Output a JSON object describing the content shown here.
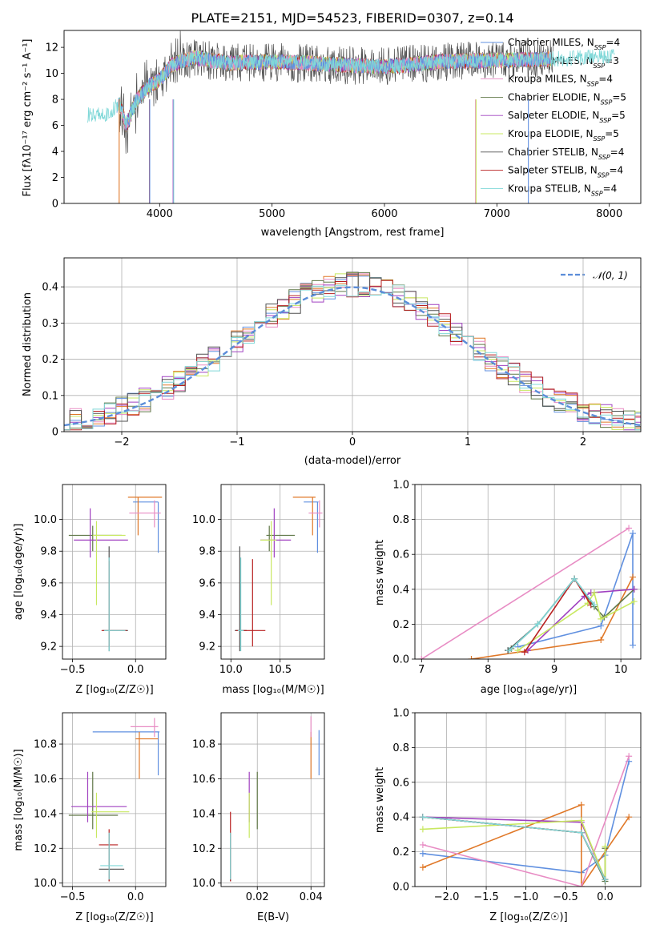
{
  "colors": [
    "#6090e0",
    "#e07828",
    "#e88cc4",
    "#607848",
    "#a040c0",
    "#c8e860",
    "#505050",
    "#b82020",
    "#80d8d8"
  ],
  "chart_data": [
    {
      "type": "line",
      "title": "PLATE=2151, MJD=54523, FIBERID=0307, z=0.14",
      "xlabel": "wavelength [Angstrom, rest frame]",
      "ylabel_html": "Flux [fλ10⁻¹⁷ erg cm⁻² s⁻¹ A⁻¹]",
      "xlim": [
        3150,
        8280
      ],
      "ylim": [
        0,
        13.3
      ],
      "xticks": [
        4000,
        5000,
        6000,
        7000,
        8000
      ],
      "yticks": [
        0,
        2,
        4,
        6,
        8,
        10,
        12
      ],
      "legend": "top-right",
      "series": [
        {
          "name": "Chabrier MILES, Nₛₛₚ=4",
          "name_main": "Chabrier MILES, N",
          "name_sub": "SSP",
          "name_tail": "=4"
        },
        {
          "name": "Salpeter MILES, Nₛₛₚ=3",
          "name_main": "Salpeter MILES, N",
          "name_sub": "SSP",
          "name_tail": "=3"
        },
        {
          "name": "Kroupa MILES, Nₛₛₚ=4",
          "name_main": "Kroupa MILES, N",
          "name_sub": "SSP",
          "name_tail": "=4"
        },
        {
          "name": "Chabrier ELODIE, Nₛₛₚ=5",
          "name_main": "Chabrier ELODIE, N",
          "name_sub": "SSP",
          "name_tail": "=5"
        },
        {
          "name": "Salpeter ELODIE, Nₛₛₚ=5",
          "name_main": "Salpeter ELODIE, N",
          "name_sub": "SSP",
          "name_tail": "=5"
        },
        {
          "name": "Kroupa ELODIE, Nₛₛₚ=5",
          "name_main": "Kroupa ELODIE, N",
          "name_sub": "SSP",
          "name_tail": "=5"
        },
        {
          "name": "Chabrier STELIB, Nₛₛₚ=4",
          "name_main": "Chabrier STELIB, N",
          "name_sub": "SSP",
          "name_tail": "=4"
        },
        {
          "name": "Salpeter STELIB, Nₛₛₚ=4",
          "name_main": "Salpeter STELIB, N",
          "name_sub": "SSP",
          "name_tail": "=4"
        },
        {
          "name": "Kroupa STELIB, Nₛₛₚ=4",
          "name_main": "Kroupa STELIB, N",
          "name_sub": "SSP",
          "name_tail": "=4"
        }
      ],
      "spectrum_envelope": {
        "x": [
          3360,
          3560,
          3640,
          3700,
          3800,
          3900,
          4000,
          4100,
          4300,
          4600,
          5000,
          5500,
          6000,
          6500,
          7000,
          7500,
          8050
        ],
        "y": [
          6.8,
          6.9,
          7.8,
          6.0,
          8.0,
          9.0,
          9.5,
          10.6,
          11.2,
          10.8,
          10.9,
          10.7,
          10.5,
          10.9,
          11.0,
          11.1,
          11.4
        ]
      }
    },
    {
      "type": "line",
      "xlabel": "(data-model)/error",
      "ylabel": "Normed distribution",
      "xlim": [
        -2.5,
        2.5
      ],
      "ylim": [
        0,
        0.48
      ],
      "xticks": [
        -2,
        -1,
        0,
        1,
        2
      ],
      "yticks": [
        0.0,
        0.1,
        0.2,
        0.3,
        0.4
      ],
      "grid": true,
      "legend": "top-right",
      "legend_label": "𝒩(0, 1)",
      "bin_width": 0.1
    },
    {
      "type": "scatter",
      "xlabel": "Z [log₁₀(Z/Z☉)]",
      "ylabel": "age  [log₁₀(age/yr)]",
      "xlim": [
        -0.58,
        0.24
      ],
      "ylim": [
        9.12,
        10.22
      ],
      "xticks": [
        -0.5,
        0.0
      ],
      "yticks": [
        9.2,
        9.4,
        9.6,
        9.8,
        10.0
      ],
      "grid": true,
      "points": [
        {
          "x": 0.18,
          "y": 10.11,
          "x0": -0.02,
          "x1": 0.18,
          "y0": 9.79,
          "y1": 10.11,
          "c": 0
        },
        {
          "x": 0.02,
          "y": 10.14,
          "x0": -0.06,
          "x1": 0.21,
          "y0": 9.9,
          "y1": 10.14,
          "c": 1
        },
        {
          "x": 0.15,
          "y": 10.04,
          "x0": -0.05,
          "x1": 0.2,
          "y0": 9.95,
          "y1": 10.12,
          "c": 2
        },
        {
          "x": -0.34,
          "y": 9.9,
          "x0": -0.53,
          "x1": -0.11,
          "y0": 9.8,
          "y1": 9.96,
          "c": 3
        },
        {
          "x": -0.36,
          "y": 9.87,
          "x0": -0.49,
          "x1": -0.06,
          "y0": 9.76,
          "y1": 10.07,
          "c": 4
        },
        {
          "x": -0.31,
          "y": 9.9,
          "x0": -0.34,
          "x1": -0.08,
          "y0": 9.46,
          "y1": 9.99,
          "c": 5
        },
        {
          "x": -0.21,
          "y": 9.3,
          "x0": -0.26,
          "x1": -0.06,
          "y0": 9.17,
          "y1": 9.83,
          "c": 6
        },
        {
          "x": -0.21,
          "y": 9.3,
          "x0": -0.27,
          "x1": -0.07,
          "y0": 9.2,
          "y1": 9.74,
          "c": 7
        },
        {
          "x": -0.21,
          "y": 9.3,
          "x0": -0.25,
          "x1": -0.08,
          "y0": 9.17,
          "y1": 9.76,
          "c": 8
        }
      ]
    },
    {
      "type": "scatter",
      "xlabel": "mass [log₁₀(M/M☉)]",
      "xlim": [
        9.9,
        10.95
      ],
      "ylim": [
        9.12,
        10.22
      ],
      "xticks": [
        10.0,
        10.5
      ],
      "yticks": [
        9.2,
        9.4,
        9.6,
        9.8,
        10.0
      ],
      "grid": true,
      "points": [
        {
          "x": 10.88,
          "y": 10.11,
          "x0": 10.74,
          "x1": 10.89,
          "y0": 9.79,
          "y1": 10.11,
          "c": 0
        },
        {
          "x": 10.83,
          "y": 10.14,
          "x0": 10.63,
          "x1": 10.86,
          "y0": 9.9,
          "y1": 10.14,
          "c": 1
        },
        {
          "x": 10.9,
          "y": 10.04,
          "x0": 10.79,
          "x1": 10.93,
          "y0": 9.95,
          "y1": 10.12,
          "c": 2
        },
        {
          "x": 10.39,
          "y": 9.9,
          "x0": 10.36,
          "x1": 10.65,
          "y0": 9.8,
          "y1": 9.96,
          "c": 3
        },
        {
          "x": 10.44,
          "y": 9.87,
          "x0": 10.3,
          "x1": 10.61,
          "y0": 9.76,
          "y1": 10.07,
          "c": 4
        },
        {
          "x": 10.41,
          "y": 9.87,
          "x0": 10.3,
          "x1": 10.46,
          "y0": 9.46,
          "y1": 9.99,
          "c": 5
        },
        {
          "x": 10.09,
          "y": 9.3,
          "x0": 10.04,
          "x1": 10.16,
          "y0": 9.17,
          "y1": 9.83,
          "c": 6
        },
        {
          "x": 10.22,
          "y": 9.3,
          "x0": 10.05,
          "x1": 10.35,
          "y0": 9.2,
          "y1": 9.75,
          "c": 7
        },
        {
          "x": 10.1,
          "y": 9.3,
          "x0": 10.07,
          "x1": 10.13,
          "y0": 9.17,
          "y1": 9.76,
          "c": 8
        }
      ]
    },
    {
      "type": "line",
      "xlabel": "age  [log₁₀(age/yr)]",
      "ylabel": "mass weight",
      "xlim": [
        6.9,
        10.3
      ],
      "ylim": [
        0,
        1.0
      ],
      "xticks": [
        7,
        8,
        9,
        10
      ],
      "yticks": [
        0.0,
        0.2,
        0.4,
        0.6,
        0.8,
        1.0
      ],
      "grid": true,
      "series": [
        {
          "c": 0,
          "x": [
            8.45,
            9.7,
            10.18,
            10.18
          ],
          "y": [
            0.07,
            0.19,
            0.72,
            0.08
          ]
        },
        {
          "c": 1,
          "x": [
            7.75,
            9.7,
            10.18
          ],
          "y": [
            0.0,
            0.11,
            0.47
          ]
        },
        {
          "c": 2,
          "x": [
            7.0,
            10.12
          ],
          "y": [
            0.0,
            0.75
          ]
        },
        {
          "c": 3,
          "x": [
            8.35,
            8.75,
            9.3,
            9.6,
            9.75,
            10.2
          ],
          "y": [
            0.06,
            0.2,
            0.46,
            0.3,
            0.24,
            0.4
          ]
        },
        {
          "c": 4,
          "x": [
            8.6,
            9.45,
            9.55,
            10.2
          ],
          "y": [
            0.05,
            0.36,
            0.38,
            0.4
          ]
        },
        {
          "c": 5,
          "x": [
            8.45,
            9.5,
            9.6,
            9.7,
            10.2
          ],
          "y": [
            0.05,
            0.32,
            0.38,
            0.23,
            0.33
          ]
        },
        {
          "c": 6,
          "x": [
            8.3,
            8.75,
            9.3,
            9.6
          ],
          "y": [
            0.05,
            0.2,
            0.46,
            0.31
          ]
        },
        {
          "c": 7,
          "x": [
            8.55,
            9.3,
            9.55
          ],
          "y": [
            0.04,
            0.46,
            0.31
          ]
        },
        {
          "c": 8,
          "x": [
            8.32,
            8.75,
            9.3,
            9.6
          ],
          "y": [
            0.05,
            0.2,
            0.46,
            0.31
          ]
        }
      ]
    },
    {
      "type": "scatter",
      "xlabel": "Z [log₁₀(Z/Z☉)]",
      "ylabel": "mass [log₁₀(M/M☉)]",
      "xlim": [
        -0.58,
        0.24
      ],
      "ylim": [
        9.98,
        10.98
      ],
      "xticks": [
        -0.5,
        0.0
      ],
      "yticks": [
        10.0,
        10.2,
        10.4,
        10.6,
        10.8
      ],
      "grid": true,
      "points": [
        {
          "x": 0.18,
          "y": 10.87,
          "x0": -0.34,
          "x1": 0.19,
          "y0": 10.62,
          "y1": 10.87,
          "c": 0
        },
        {
          "x": 0.03,
          "y": 10.83,
          "x0": 0.0,
          "x1": 0.18,
          "y0": 10.6,
          "y1": 10.87,
          "c": 1
        },
        {
          "x": 0.15,
          "y": 10.9,
          "x0": -0.04,
          "x1": 0.18,
          "y0": 10.84,
          "y1": 10.95,
          "c": 2
        },
        {
          "x": -0.34,
          "y": 10.39,
          "x0": -0.53,
          "x1": -0.14,
          "y0": 10.31,
          "y1": 10.64,
          "c": 3
        },
        {
          "x": -0.38,
          "y": 10.44,
          "x0": -0.51,
          "x1": -0.07,
          "y0": 10.35,
          "y1": 10.64,
          "c": 4
        },
        {
          "x": -0.31,
          "y": 10.41,
          "x0": -0.35,
          "x1": -0.05,
          "y0": 10.26,
          "y1": 10.52,
          "c": 5
        },
        {
          "x": -0.21,
          "y": 10.08,
          "x0": -0.29,
          "x1": -0.09,
          "y0": 10.01,
          "y1": 10.29,
          "c": 6
        },
        {
          "x": -0.21,
          "y": 10.22,
          "x0": -0.29,
          "x1": -0.14,
          "y0": 10.01,
          "y1": 10.31,
          "c": 7
        },
        {
          "x": -0.21,
          "y": 10.1,
          "x0": -0.28,
          "x1": -0.1,
          "y0": 10.02,
          "y1": 10.29,
          "c": 8
        }
      ]
    },
    {
      "type": "scatter",
      "xlabel": "E(B-V)",
      "xlim": [
        0.0065,
        0.045
      ],
      "ylim": [
        9.98,
        10.98
      ],
      "xticks": [
        0.02,
        0.04
      ],
      "yticks": [
        10.0,
        10.2,
        10.4,
        10.6,
        10.8
      ],
      "grid": true,
      "points": [
        {
          "x": 0.043,
          "y": 10.87,
          "x0": 0.043,
          "x1": 0.043,
          "y0": 10.62,
          "y1": 10.88,
          "c": 0
        },
        {
          "x": 0.04,
          "y": 10.83,
          "x0": 0.04,
          "x1": 0.04,
          "y0": 10.6,
          "y1": 10.87,
          "c": 1
        },
        {
          "x": 0.04,
          "y": 10.9,
          "x0": 0.04,
          "x1": 0.04,
          "y0": 10.84,
          "y1": 10.96,
          "c": 2
        },
        {
          "x": 0.02,
          "y": 10.39,
          "x0": 0.02,
          "x1": 0.02,
          "y0": 10.31,
          "y1": 10.64,
          "c": 3
        },
        {
          "x": 0.017,
          "y": 10.44,
          "x0": 0.017,
          "x1": 0.017,
          "y0": 10.35,
          "y1": 10.64,
          "c": 4
        },
        {
          "x": 0.017,
          "y": 10.41,
          "x0": 0.017,
          "x1": 0.017,
          "y0": 10.26,
          "y1": 10.52,
          "c": 5
        },
        {
          "x": 0.01,
          "y": 10.08,
          "x0": 0.01,
          "x1": 0.01,
          "y0": 10.01,
          "y1": 10.29,
          "c": 6
        },
        {
          "x": 0.01,
          "y": 10.22,
          "x0": 0.01,
          "x1": 0.01,
          "y0": 10.01,
          "y1": 10.41,
          "c": 7
        },
        {
          "x": 0.01,
          "y": 10.1,
          "x0": 0.01,
          "x1": 0.01,
          "y0": 10.02,
          "y1": 10.29,
          "c": 8
        }
      ]
    },
    {
      "type": "line",
      "xlabel": "Z [log₁₀(Z/Z☉)]",
      "ylabel": "mass weight",
      "xlim": [
        -2.4,
        0.45
      ],
      "ylim": [
        0,
        1.0
      ],
      "xticks": [
        -2.0,
        -1.5,
        -1.0,
        -0.5,
        0.0
      ],
      "yticks": [
        0.0,
        0.2,
        0.4,
        0.6,
        0.8,
        1.0
      ],
      "grid": true,
      "series": [
        {
          "c": 0,
          "x": [
            -2.3,
            -0.3,
            0.0,
            0.3
          ],
          "y": [
            0.19,
            0.08,
            0.18,
            0.72
          ]
        },
        {
          "c": 1,
          "x": [
            -2.3,
            -0.3,
            -0.3,
            0.3
          ],
          "y": [
            0.11,
            0.47,
            0.0,
            0.4
          ]
        },
        {
          "c": 2,
          "x": [
            -2.3,
            -0.3,
            0.3
          ],
          "y": [
            0.24,
            0.0,
            0.75
          ]
        },
        {
          "c": 3,
          "x": [
            -2.3,
            -0.3,
            0.0,
            0.0
          ],
          "y": [
            0.4,
            0.31,
            0.03,
            0.22
          ]
        },
        {
          "c": 4,
          "x": [
            -2.3,
            -0.3,
            0.0
          ],
          "y": [
            0.4,
            0.37,
            0.04
          ]
        },
        {
          "c": 5,
          "x": [
            -2.3,
            -0.3,
            0.0,
            0.0
          ],
          "y": [
            0.33,
            0.38,
            0.04,
            0.23
          ]
        },
        {
          "c": 6,
          "x": [
            -2.3,
            -0.3,
            0.0
          ],
          "y": [
            0.4,
            0.31,
            0.04
          ]
        },
        {
          "c": 7,
          "x": [
            -2.3,
            -0.3,
            0.0
          ],
          "y": [
            0.4,
            0.31,
            0.04
          ]
        },
        {
          "c": 8,
          "x": [
            -2.3,
            -0.3,
            0.0
          ],
          "y": [
            0.4,
            0.31,
            0.04
          ]
        }
      ]
    }
  ]
}
